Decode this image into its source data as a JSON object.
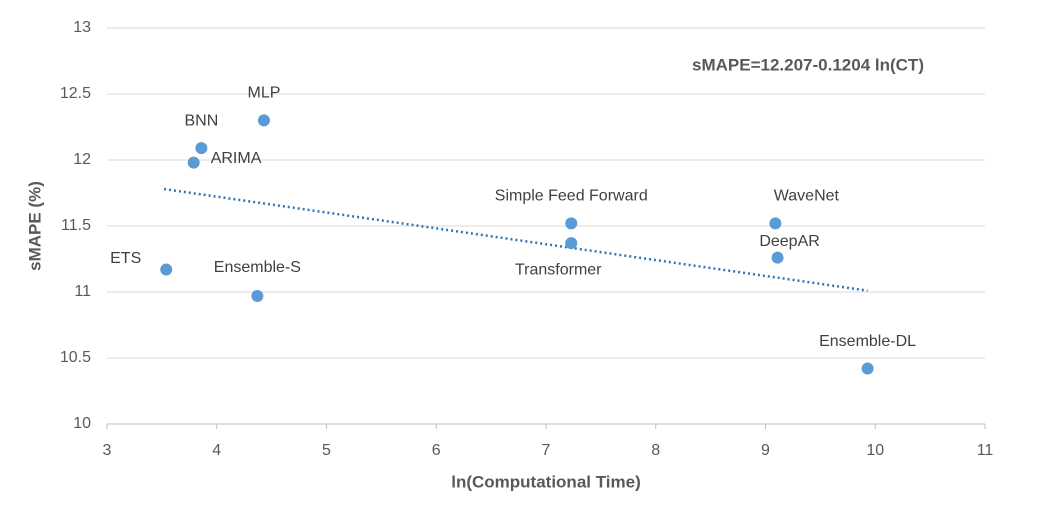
{
  "chart_data": {
    "type": "scatter",
    "annotation": "sMAPE=12.207-0.1204 ln(CT)",
    "x_label": "ln(Computational Time)",
    "y_label": "sMAPE (%)",
    "labels": [
      "ETS",
      "ARIMA",
      "BNN",
      "MLP",
      "Ensemble-S",
      "Simple Feed Forward",
      "Transformer",
      "WaveNet",
      "DeepAR",
      "Ensemble-DL"
    ],
    "x": [
      3.54,
      3.79,
      3.86,
      4.43,
      4.37,
      7.23,
      7.23,
      9.09,
      9.11,
      9.93
    ],
    "values": [
      11.17,
      11.98,
      12.09,
      12.3,
      10.97,
      11.52,
      11.37,
      11.52,
      11.26,
      10.42
    ],
    "color": "#5b9bd5",
    "trendline": {
      "x": [
        3.52,
        9.93
      ],
      "values": [
        11.78,
        11.01
      ],
      "color": "#2e75b6",
      "style": "dotted"
    },
    "xlim": [
      3,
      11
    ],
    "xticks": [
      3,
      4,
      5,
      6,
      7,
      8,
      9,
      10,
      11
    ],
    "ylim": [
      10,
      13
    ],
    "yticks": [
      10,
      10.5,
      11,
      11.5,
      12,
      12.5,
      13
    ],
    "grid": true
  }
}
